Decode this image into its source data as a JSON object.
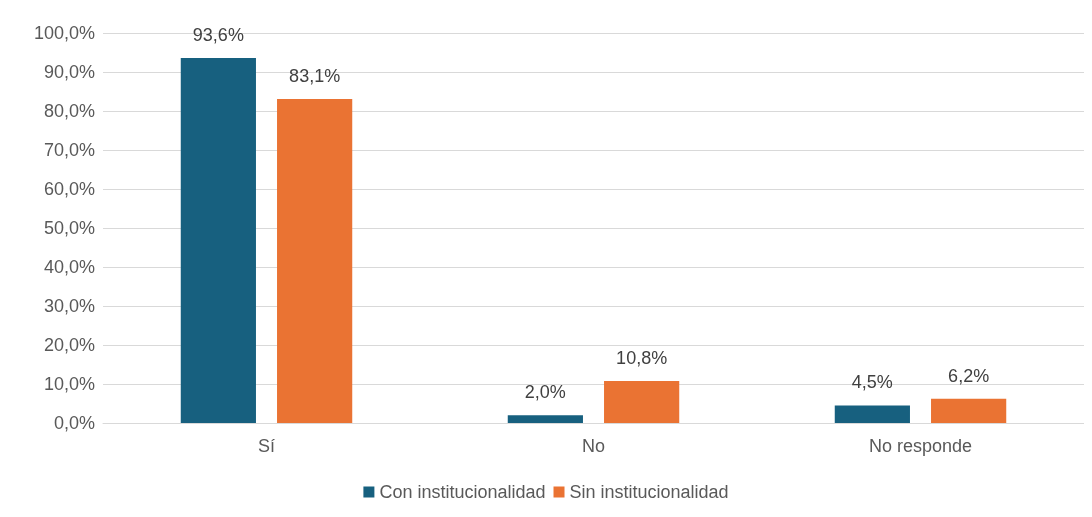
{
  "chart_data": {
    "type": "bar",
    "categories": [
      "Sí",
      "No",
      "No responde"
    ],
    "series": [
      {
        "name": "Con institucionalidad",
        "color": "#17607f",
        "values": [
          93.6,
          2.0,
          4.5
        ],
        "value_labels": [
          "93,6%",
          "2,0%",
          "4,5%"
        ]
      },
      {
        "name": "Sin institucionalidad",
        "color": "#ea7333",
        "values": [
          83.1,
          10.8,
          6.2
        ],
        "value_labels": [
          "83,1%",
          "10,8%",
          "6,2%"
        ]
      }
    ],
    "ylim": [
      0,
      100
    ],
    "yticks": [
      {
        "value": 0,
        "label": "0,0%"
      },
      {
        "value": 10,
        "label": "10,0%"
      },
      {
        "value": 20,
        "label": "20,0%"
      },
      {
        "value": 30,
        "label": "30,0%"
      },
      {
        "value": 40,
        "label": "40,0%"
      },
      {
        "value": 50,
        "label": "50,0%"
      },
      {
        "value": 60,
        "label": "60,0%"
      },
      {
        "value": 70,
        "label": "70,0%"
      },
      {
        "value": 80,
        "label": "80,0%"
      },
      {
        "value": 90,
        "label": "90,0%"
      },
      {
        "value": 100,
        "label": "100,0%"
      }
    ],
    "grid": "y",
    "legend": "bottom"
  }
}
